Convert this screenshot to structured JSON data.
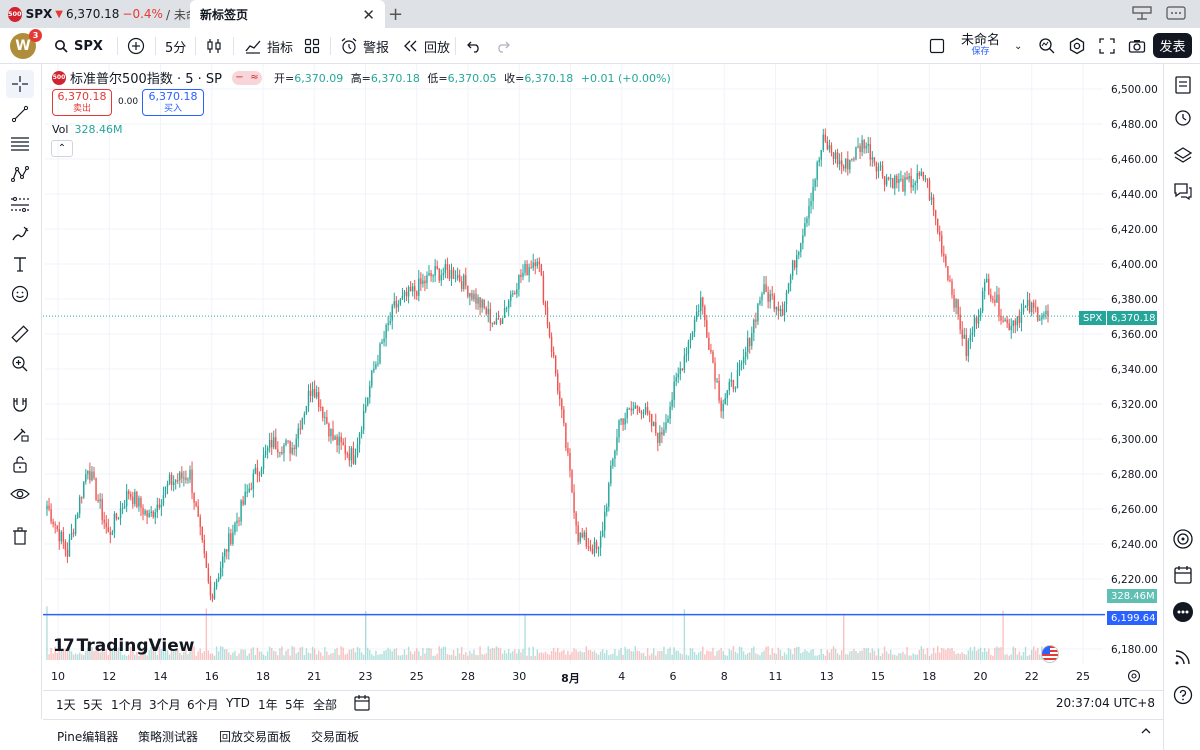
{
  "browser": {
    "tab1": {
      "favicon": "500",
      "symbol": "SPX",
      "price": "6,370.18",
      "change": "−0.4%",
      "rest": "/ 未命名"
    },
    "tab2": {
      "title": "新标签页"
    }
  },
  "header": {
    "avatar_letter": "W",
    "avatar_badge": "3",
    "symbol": "SPX",
    "interval": "5分",
    "indicators_label": "指标",
    "alerts_label": "警报",
    "replay_label": "回放",
    "layout_name": "未命名",
    "layout_sub": "保存",
    "publish_label": "发表"
  },
  "legend": {
    "icon_text": "500",
    "name": "标准普尔500指数 · 5 · SP",
    "open_label": "开=",
    "open": "6,370.09",
    "high_label": "高=",
    "high": "6,370.18",
    "low_label": "低=",
    "low": "6,370.05",
    "close_label": "收=",
    "close": "6,370.18",
    "change": "+0.01 (+0.00%)",
    "sell_price": "6,370.18",
    "sell_label": "卖出",
    "spread": "0.00",
    "buy_price": "6,370.18",
    "buy_label": "买入",
    "vol_label": "Vol",
    "vol_value": "328.46M",
    "collapse_glyph": "⌃"
  },
  "brand": {
    "logo_text": "TradingView",
    "logo_mark": "17"
  },
  "price_axis": {
    "ticks": [
      "6,500.00",
      "6,480.00",
      "6,460.00",
      "6,440.00",
      "6,420.00",
      "6,400.00",
      "6,380.00",
      "6,360.00",
      "6,340.00",
      "6,320.00",
      "6,300.00",
      "6,280.00",
      "6,260.00",
      "6,240.00",
      "6,220.00",
      "6,180.00"
    ],
    "current_symbol": "SPX",
    "current_price": "6,370.18",
    "vol_tag": "328.46M",
    "hline_price": "6,199.64"
  },
  "time_axis": {
    "labels": [
      "10",
      "12",
      "14",
      "16",
      "18",
      "21",
      "23",
      "25",
      "28",
      "30",
      "8月",
      "4",
      "6",
      "8",
      "11",
      "13",
      "15",
      "18",
      "20",
      "22",
      "25"
    ]
  },
  "ranges": [
    "1天",
    "5天",
    "1个月",
    "3个月",
    "6个月",
    "YTD",
    "1年",
    "5年",
    "全部"
  ],
  "clock": "20:37:04 UTC+8",
  "panels": [
    "Pine编辑器",
    "策略测试器",
    "回放交易面板",
    "交易面板"
  ],
  "colors": {
    "up": "#26a69a",
    "down": "#ef5350",
    "hline": "#2962ff",
    "current": "#26a69a",
    "accent": "#2962ff"
  },
  "chart_data": {
    "type": "candlestick",
    "symbol": "SPX",
    "interval": "5",
    "ylim": [
      6170,
      6510
    ],
    "series_close_anchors": [
      {
        "t": "10",
        "v": 6262
      },
      {
        "t": "10b",
        "v": 6235
      },
      {
        "t": "11",
        "v": 6285
      },
      {
        "t": "12",
        "v": 6245
      },
      {
        "t": "13",
        "v": 6270
      },
      {
        "t": "14",
        "v": 6255
      },
      {
        "t": "15",
        "v": 6275
      },
      {
        "t": "16",
        "v": 6280
      },
      {
        "t": "17",
        "v": 6210
      },
      {
        "t": "17b",
        "v": 6245
      },
      {
        "t": "18",
        "v": 6275
      },
      {
        "t": "19",
        "v": 6298
      },
      {
        "t": "20",
        "v": 6295
      },
      {
        "t": "21",
        "v": 6332
      },
      {
        "t": "22",
        "v": 6300
      },
      {
        "t": "23",
        "v": 6290
      },
      {
        "t": "24",
        "v": 6340
      },
      {
        "t": "25",
        "v": 6375
      },
      {
        "t": "26",
        "v": 6385
      },
      {
        "t": "28",
        "v": 6395
      },
      {
        "t": "29",
        "v": 6395
      },
      {
        "t": "30",
        "v": 6380
      },
      {
        "t": "31",
        "v": 6365
      },
      {
        "t": "31b",
        "v": 6390
      },
      {
        "t": "8月",
        "v": 6405
      },
      {
        "t": "8月b",
        "v": 6330
      },
      {
        "t": "1b",
        "v": 6245
      },
      {
        "t": "4",
        "v": 6235
      },
      {
        "t": "5",
        "v": 6310
      },
      {
        "t": "5b",
        "v": 6320
      },
      {
        "t": "6",
        "v": 6300
      },
      {
        "t": "7",
        "v": 6340
      },
      {
        "t": "8",
        "v": 6380
      },
      {
        "t": "8b",
        "v": 6320
      },
      {
        "t": "9",
        "v": 6340
      },
      {
        "t": "11",
        "v": 6385
      },
      {
        "t": "12",
        "v": 6375
      },
      {
        "t": "13",
        "v": 6420
      },
      {
        "t": "14",
        "v": 6470
      },
      {
        "t": "15",
        "v": 6455
      },
      {
        "t": "16",
        "v": 6470
      },
      {
        "t": "17",
        "v": 6450
      },
      {
        "t": "18",
        "v": 6445
      },
      {
        "t": "19",
        "v": 6450
      },
      {
        "t": "20",
        "v": 6400
      },
      {
        "t": "20b",
        "v": 6350
      },
      {
        "t": "21",
        "v": 6390
      },
      {
        "t": "22",
        "v": 6365
      },
      {
        "t": "22b",
        "v": 6375
      },
      {
        "t": "22c",
        "v": 6370.18
      }
    ],
    "current_price": 6370.18,
    "horizontal_line": 6199.64,
    "volume_last": "328.46M"
  }
}
